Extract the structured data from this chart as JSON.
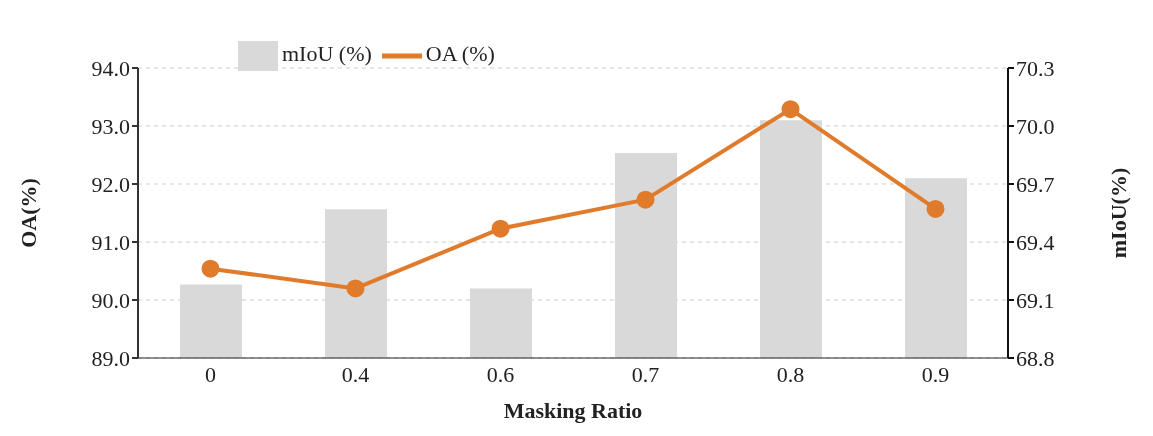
{
  "chart_data": {
    "type": "bar",
    "xlabel": "Masking Ratio",
    "ylabel": "OA(%)",
    "y2label": "mIoU(%)",
    "categories": [
      "0",
      "0.4",
      "0.6",
      "0.7",
      "0.8",
      "0.9"
    ],
    "series": [
      {
        "name": "mIoU (%)",
        "axis": "y2",
        "color": "#d9d9d9",
        "values": [
          69.18,
          69.57,
          69.16,
          69.86,
          70.03,
          69.73
        ]
      },
      {
        "name": "OA (%)",
        "type": "line",
        "axis": "y",
        "color": "#e07b2c",
        "marker": "circle",
        "values": [
          90.54,
          90.2,
          91.23,
          91.73,
          93.29,
          91.57
        ]
      }
    ],
    "ylim": [
      89,
      94
    ],
    "yticks": [
      {
        "value": 89,
        "label": "89.0"
      },
      {
        "value": 90,
        "label": "90.0"
      },
      {
        "value": 91,
        "label": "91.0"
      },
      {
        "value": 92,
        "label": "92.0"
      },
      {
        "value": 93,
        "label": "93.0"
      },
      {
        "value": 94,
        "label": "94.0"
      }
    ],
    "y2lim": [
      68.8,
      70.3
    ],
    "y2ticks": [
      68.8,
      69.1,
      69.4,
      69.7,
      {
        "value": 70,
        "label": "70.0"
      },
      70.3
    ],
    "grid": "y",
    "legend": "top left"
  }
}
